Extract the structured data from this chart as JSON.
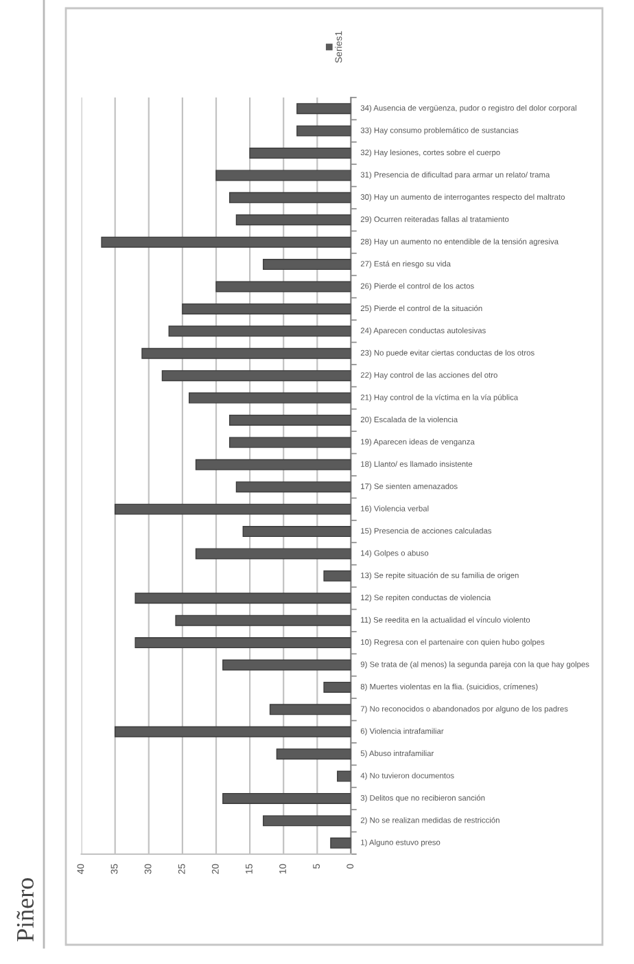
{
  "chart_data": {
    "type": "bar",
    "orientation": "horizontal",
    "categories": [
      "34) Ausencia de vergüenza, pudor o registro del dolor corporal",
      "33) Hay consumo problemático de sustancias",
      "32) Hay lesiones, cortes sobre el cuerpo",
      "31) Presencia de dificultad para armar un relato/ trama",
      "30) Hay un aumento de interrogantes respecto del maltrato",
      "29) Ocurren reiteradas fallas al tratamiento",
      "28) Hay un aumento no entendible de la tensión agresiva",
      "27) Está en riesgo su vida",
      "26) Pierde el control de los actos",
      "25) Pierde el control de la situación",
      "24) Aparecen conductas autolesivas",
      "23) No puede evitar ciertas conductas de los otros",
      "22) Hay control de las acciones del otro",
      "21) Hay control de la víctima en la vía pública",
      "20) Escalada de la violencia",
      "19) Aparecen ideas de venganza",
      "18) Llanto/ es llamado insistente",
      "17) Se sienten amenazados",
      "16) Violencia verbal",
      "15) Presencia de acciones calculadas",
      "14) Golpes o abuso",
      "13) Se repite situación de su familia de origen",
      "12) Se repiten conductas de violencia",
      "11) Se reedita en la actualidad el vínculo violento",
      "10) Regresa con el partenaire con quien hubo golpes",
      "9) Se trata de (al menos) la segunda pareja con la que hay golpes",
      "8) Muertes violentas en la flia. (suicidios, crímenes)",
      "7) No reconocidos o abandonados por alguno de los padres",
      "6) Violencia intrafamiliar",
      "5) Abuso intrafamiliar",
      "4) No tuvieron documentos",
      "3) Delitos que no recibieron sanción",
      "2) No se realizan medidas de restricción",
      "1) Alguno estuvo preso"
    ],
    "series": [
      {
        "name": "Series1",
        "color": "#5a5a5a",
        "values": [
          8,
          8,
          15,
          20,
          18,
          17,
          37,
          13,
          20,
          25,
          27,
          31,
          28,
          24,
          18,
          18,
          23,
          17,
          35,
          16,
          23,
          4,
          32,
          26,
          32,
          19,
          4,
          12,
          35,
          11,
          2,
          19,
          13,
          3
        ]
      }
    ],
    "xlim": [
      40,
      0
    ],
    "xticks": [
      0,
      5,
      10,
      15,
      20,
      25,
      30,
      35,
      40
    ],
    "grid": "x",
    "legend": "top right",
    "annotations": [
      "Piñero"
    ]
  }
}
